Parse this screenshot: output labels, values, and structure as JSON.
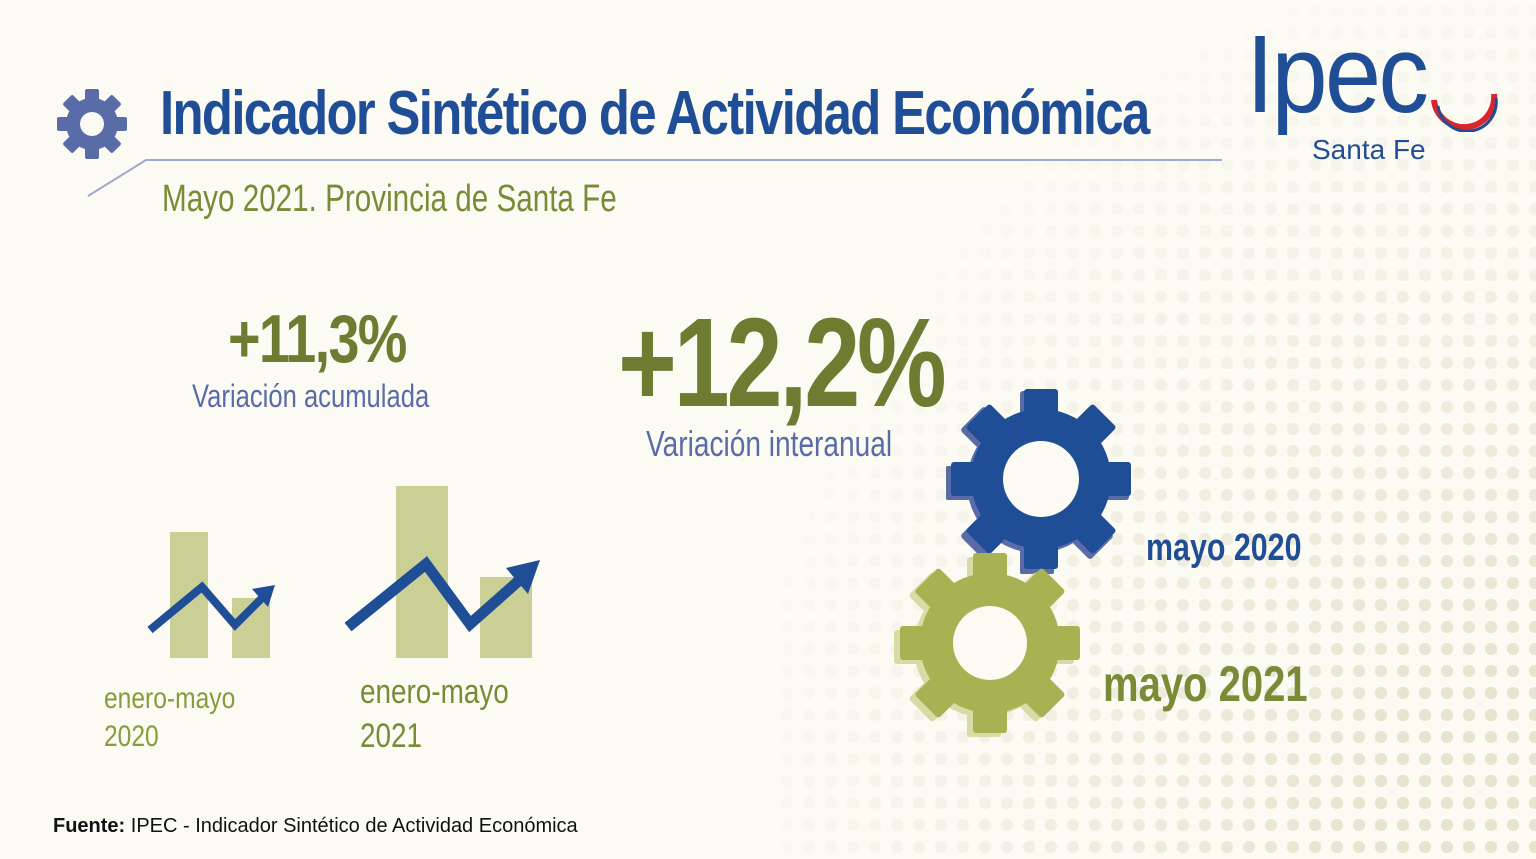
{
  "header": {
    "title": "Indicador Sintético de Actividad Económica",
    "subtitle": "Mayo 2021. Provincia de Santa Fe"
  },
  "logo": {
    "name": "Ipec",
    "region": "Santa Fe",
    "colors": {
      "blue": "#1f4e97",
      "red": "#d9262e"
    }
  },
  "accumulated": {
    "value": "+11,3%",
    "label": "Variación acumulada",
    "period_prev_line1": "enero-mayo",
    "period_prev_line2": "2020",
    "period_curr_line1": "enero-mayo",
    "period_curr_line2": "2021"
  },
  "interannual": {
    "value": "+12,2%",
    "label": "Variación interanual",
    "period_prev": "mayo 2020",
    "period_curr": "mayo 2021"
  },
  "icons": [
    "gear-icon",
    "trend-arrow-icon"
  ],
  "colors": {
    "blue": "#1f4e97",
    "olive": "#7b8a36",
    "bar": "#c9cf95",
    "lavender": "#5a6ca8",
    "gear_green": "#a7b352"
  },
  "footer": {
    "source_label": "Fuente:",
    "source_text": "IPEC - Indicador Sintético de Actividad Económica"
  }
}
